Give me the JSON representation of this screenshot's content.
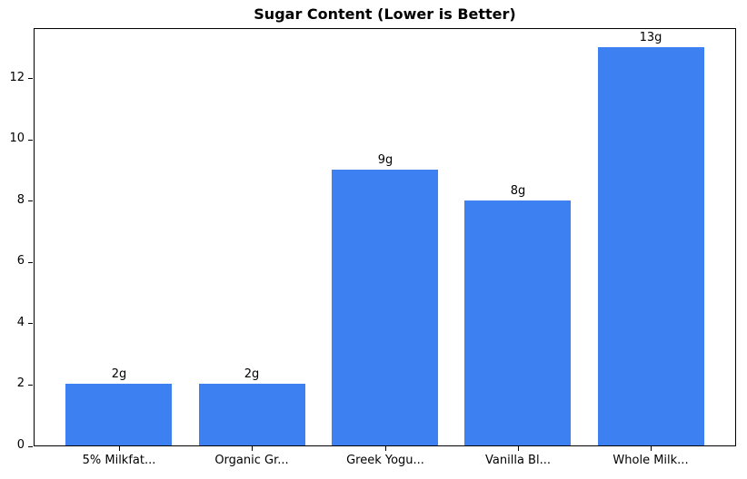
{
  "chart_data": {
    "type": "bar",
    "title": "Sugar Content (Lower is Better)",
    "categories": [
      "5% Milkfat...",
      "Organic Gr...",
      "Greek Yogu...",
      "Vanilla Bl...",
      "Whole Milk..."
    ],
    "values": [
      2,
      2,
      9,
      8,
      13
    ],
    "bar_labels": [
      "2g",
      "2g",
      "9g",
      "8g",
      "13g"
    ],
    "xlabel": "",
    "ylabel": "",
    "yticks": [
      0,
      2,
      4,
      6,
      8,
      10,
      12
    ],
    "ylim": [
      0,
      13.65
    ],
    "grid": false,
    "legend": null,
    "bar_color": "#3c80f2",
    "text_color": "#000000",
    "background": "#ffffff"
  }
}
